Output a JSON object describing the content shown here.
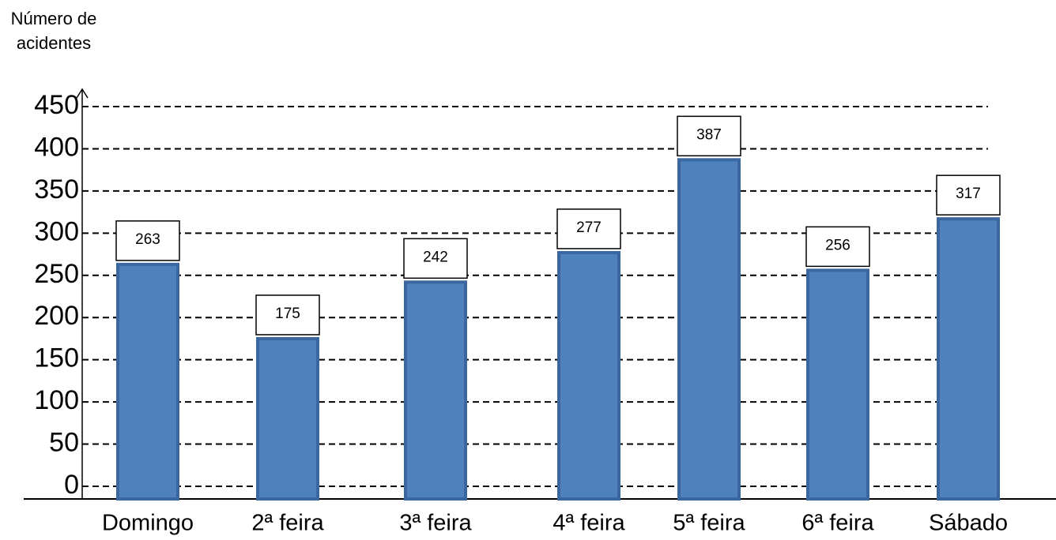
{
  "chart_data": {
    "type": "bar",
    "y_label": "Número de acidentes",
    "categories": [
      "Domingo",
      "2ª feira",
      "3ª feira",
      "4ª feira",
      "5ª feira",
      "6ª feira",
      "Sábado"
    ],
    "values": [
      263,
      175,
      242,
      277,
      387,
      256,
      317
    ],
    "color": "#4f81bd",
    "ylim": [
      0,
      450
    ],
    "yticks": [
      0,
      50,
      100,
      150,
      200,
      250,
      300,
      350,
      400,
      450
    ],
    "grid": true
  }
}
